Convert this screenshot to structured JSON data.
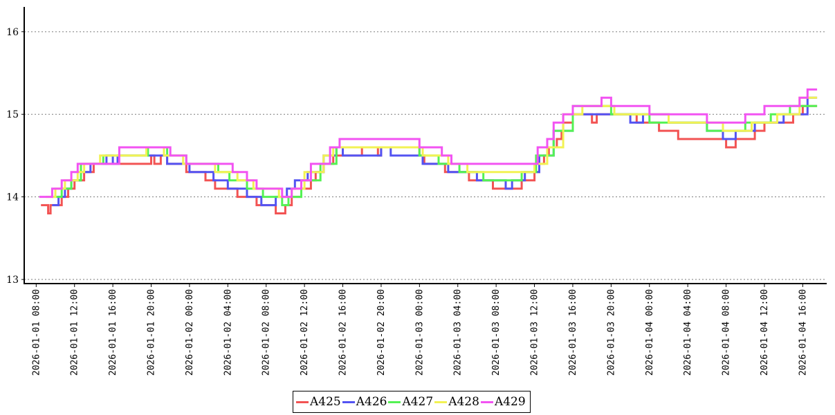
{
  "chart_data": {
    "type": "line",
    "title": "",
    "xlabel": "",
    "ylabel": "",
    "ylim": [
      12.95,
      16.3
    ],
    "xlim": [
      "2026-01-01 06:45",
      "2026-01-04 18:30"
    ],
    "y_ticks": [
      "13",
      "14",
      "15",
      "16"
    ],
    "x_ticks": [
      "2026-01-01 08:00",
      "2026-01-01 12:00",
      "2026-01-01 16:00",
      "2026-01-01 20:00",
      "2026-01-02 00:00",
      "2026-01-02 04:00",
      "2026-01-02 08:00",
      "2026-01-02 12:00",
      "2026-01-02 16:00",
      "2026-01-02 20:00",
      "2026-01-03 00:00",
      "2026-01-03 04:00",
      "2026-01-03 08:00",
      "2026-01-03 12:00",
      "2026-01-03 16:00",
      "2026-01-03 20:00",
      "2026-01-04 00:00",
      "2026-01-04 04:00",
      "2026-01-04 08:00",
      "2026-01-04 12:00",
      "2026-01-04 16:00"
    ],
    "grid": "horizontal dotted",
    "step": true,
    "legend_position": "bottom-center",
    "series": [
      {
        "name": "A425",
        "color": "#f25353",
        "points": [
          [
            "2026-01-01 08:30",
            13.9
          ],
          [
            "2026-01-01 09:15",
            13.8
          ],
          [
            "2026-01-01 09:30",
            13.9
          ],
          [
            "2026-01-01 10:40",
            14.0
          ],
          [
            "2026-01-01 11:20",
            14.1
          ],
          [
            "2026-01-01 12:00",
            14.2
          ],
          [
            "2026-01-01 13:00",
            14.3
          ],
          [
            "2026-01-01 14:00",
            14.4
          ],
          [
            "2026-01-01 20:00",
            14.5
          ],
          [
            "2026-01-01 20:20",
            14.4
          ],
          [
            "2026-01-01 21:00",
            14.5
          ],
          [
            "2026-01-01 21:40",
            14.4
          ],
          [
            "2026-01-01 23:40",
            14.3
          ],
          [
            "2026-01-02 01:40",
            14.2
          ],
          [
            "2026-01-02 02:40",
            14.1
          ],
          [
            "2026-01-02 03:40",
            14.1
          ],
          [
            "2026-01-02 05:00",
            14.0
          ],
          [
            "2026-01-02 07:00",
            13.9
          ],
          [
            "2026-01-02 09:00",
            13.8
          ],
          [
            "2026-01-02 10:00",
            13.9
          ],
          [
            "2026-01-02 10:40",
            14.0
          ],
          [
            "2026-01-02 11:40",
            14.1
          ],
          [
            "2026-01-02 12:40",
            14.2
          ],
          [
            "2026-01-02 13:10",
            14.3
          ],
          [
            "2026-01-02 14:00",
            14.4
          ],
          [
            "2026-01-02 15:00",
            14.5
          ],
          [
            "2026-01-02 16:30",
            14.5
          ],
          [
            "2026-01-02 18:00",
            14.6
          ],
          [
            "2026-01-02 19:40",
            14.5
          ],
          [
            "2026-01-02 20:00",
            14.6
          ],
          [
            "2026-01-03 00:00",
            14.5
          ],
          [
            "2026-01-03 00:30",
            14.4
          ],
          [
            "2026-01-03 02:40",
            14.3
          ],
          [
            "2026-01-03 04:10",
            14.3
          ],
          [
            "2026-01-03 05:10",
            14.2
          ],
          [
            "2026-01-03 07:40",
            14.1
          ],
          [
            "2026-01-03 10:40",
            14.2
          ],
          [
            "2026-01-03 12:00",
            14.3
          ],
          [
            "2026-01-03 12:30",
            14.4
          ],
          [
            "2026-01-03 13:00",
            14.5
          ],
          [
            "2026-01-03 13:30",
            14.6
          ],
          [
            "2026-01-03 14:20",
            14.7
          ],
          [
            "2026-01-03 14:50",
            14.8
          ],
          [
            "2026-01-03 15:00",
            14.9
          ],
          [
            "2026-01-03 16:00",
            15.0
          ],
          [
            "2026-01-03 18:00",
            14.9
          ],
          [
            "2026-01-03 18:30",
            15.0
          ],
          [
            "2026-01-03 22:40",
            14.9
          ],
          [
            "2026-01-04 01:00",
            14.8
          ],
          [
            "2026-01-04 03:00",
            14.7
          ],
          [
            "2026-01-04 08:00",
            14.6
          ],
          [
            "2026-01-04 09:00",
            14.7
          ],
          [
            "2026-01-04 11:00",
            14.8
          ],
          [
            "2026-01-04 12:00",
            14.9
          ],
          [
            "2026-01-04 15:00",
            15.0
          ],
          [
            "2026-01-04 16:00",
            15.1
          ],
          [
            "2026-01-04 17:30",
            15.1
          ]
        ]
      },
      {
        "name": "A426",
        "color": "#5353f2",
        "points": [
          [
            "2026-01-01 09:40",
            13.9
          ],
          [
            "2026-01-01 10:20",
            14.0
          ],
          [
            "2026-01-01 11:00",
            14.1
          ],
          [
            "2026-01-01 11:40",
            14.2
          ],
          [
            "2026-01-01 12:40",
            14.3
          ],
          [
            "2026-01-01 13:40",
            14.4
          ],
          [
            "2026-01-01 15:20",
            14.5
          ],
          [
            "2026-01-01 16:00",
            14.4
          ],
          [
            "2026-01-01 16:30",
            14.5
          ],
          [
            "2026-01-01 21:40",
            14.4
          ],
          [
            "2026-01-01 22:00",
            14.4
          ],
          [
            "2026-01-02 00:00",
            14.3
          ],
          [
            "2026-01-02 02:30",
            14.2
          ],
          [
            "2026-01-02 04:00",
            14.1
          ],
          [
            "2026-01-02 06:00",
            14.0
          ],
          [
            "2026-01-02 07:30",
            13.9
          ],
          [
            "2026-01-02 09:00",
            14.0
          ],
          [
            "2026-01-02 10:10",
            14.1
          ],
          [
            "2026-01-02 11:00",
            14.2
          ],
          [
            "2026-01-02 12:20",
            14.3
          ],
          [
            "2026-01-02 14:00",
            14.5
          ],
          [
            "2026-01-02 15:20",
            14.6
          ],
          [
            "2026-01-02 16:00",
            14.5
          ],
          [
            "2026-01-02 20:00",
            14.6
          ],
          [
            "2026-01-02 21:00",
            14.5
          ],
          [
            "2026-01-03 00:00",
            14.5
          ],
          [
            "2026-01-03 00:20",
            14.4
          ],
          [
            "2026-01-03 03:00",
            14.3
          ],
          [
            "2026-01-03 06:00",
            14.2
          ],
          [
            "2026-01-03 09:00",
            14.1
          ],
          [
            "2026-01-03 09:40",
            14.2
          ],
          [
            "2026-01-03 11:00",
            14.3
          ],
          [
            "2026-01-03 12:30",
            14.5
          ],
          [
            "2026-01-03 14:00",
            14.8
          ],
          [
            "2026-01-03 16:00",
            15.0
          ],
          [
            "2026-01-03 22:00",
            14.9
          ],
          [
            "2026-01-03 23:20",
            15.0
          ],
          [
            "2026-01-04 02:00",
            14.9
          ],
          [
            "2026-01-04 06:00",
            14.8
          ],
          [
            "2026-01-04 07:40",
            14.7
          ],
          [
            "2026-01-04 09:00",
            14.8
          ],
          [
            "2026-01-04 11:00",
            14.9
          ],
          [
            "2026-01-04 14:00",
            15.0
          ],
          [
            "2026-01-04 16:30",
            15.2
          ],
          [
            "2026-01-04 17:30",
            15.2
          ]
        ]
      },
      {
        "name": "A427",
        "color": "#53f253",
        "points": [
          [
            "2026-01-01 09:40",
            14.0
          ],
          [
            "2026-01-01 10:40",
            14.1
          ],
          [
            "2026-01-01 11:40",
            14.2
          ],
          [
            "2026-01-01 12:40",
            14.4
          ],
          [
            "2026-01-01 15:00",
            14.5
          ],
          [
            "2026-01-01 19:40",
            14.6
          ],
          [
            "2026-01-01 21:40",
            14.5
          ],
          [
            "2026-01-01 23:40",
            14.4
          ],
          [
            "2026-01-02 03:00",
            14.3
          ],
          [
            "2026-01-02 04:10",
            14.2
          ],
          [
            "2026-01-02 06:00",
            14.1
          ],
          [
            "2026-01-02 07:40",
            14.0
          ],
          [
            "2026-01-02 09:40",
            13.9
          ],
          [
            "2026-01-02 10:20",
            14.0
          ],
          [
            "2026-01-02 11:40",
            14.2
          ],
          [
            "2026-01-02 13:40",
            14.4
          ],
          [
            "2026-01-02 15:20",
            14.6
          ],
          [
            "2026-01-03 00:00",
            14.5
          ],
          [
            "2026-01-03 02:00",
            14.4
          ],
          [
            "2026-01-03 04:10",
            14.3
          ],
          [
            "2026-01-03 06:40",
            14.2
          ],
          [
            "2026-01-03 10:40",
            14.3
          ],
          [
            "2026-01-03 12:10",
            14.5
          ],
          [
            "2026-01-03 14:00",
            14.8
          ],
          [
            "2026-01-03 16:00",
            15.1
          ],
          [
            "2026-01-03 20:00",
            15.0
          ],
          [
            "2026-01-04 00:00",
            14.9
          ],
          [
            "2026-01-04 06:00",
            14.8
          ],
          [
            "2026-01-04 10:00",
            14.9
          ],
          [
            "2026-01-04 12:40",
            15.0
          ],
          [
            "2026-01-04 14:40",
            15.1
          ],
          [
            "2026-01-04 17:30",
            15.1
          ]
        ]
      },
      {
        "name": "A428",
        "color": "#f2f253",
        "points": [
          [
            "2026-01-01 09:00",
            14.0
          ],
          [
            "2026-01-01 10:00",
            14.1
          ],
          [
            "2026-01-01 11:00",
            14.2
          ],
          [
            "2026-01-01 12:20",
            14.3
          ],
          [
            "2026-01-01 13:00",
            14.4
          ],
          [
            "2026-01-01 14:40",
            14.5
          ],
          [
            "2026-01-01 19:30",
            14.6
          ],
          [
            "2026-01-01 21:20",
            14.5
          ],
          [
            "2026-01-01 23:20",
            14.4
          ],
          [
            "2026-01-02 02:40",
            14.3
          ],
          [
            "2026-01-02 05:00",
            14.2
          ],
          [
            "2026-01-02 06:40",
            14.1
          ],
          [
            "2026-01-02 09:20",
            14.0
          ],
          [
            "2026-01-02 10:40",
            14.1
          ],
          [
            "2026-01-02 12:00",
            14.3
          ],
          [
            "2026-01-02 14:00",
            14.5
          ],
          [
            "2026-01-02 15:00",
            14.6
          ],
          [
            "2026-01-03 00:20",
            14.5
          ],
          [
            "2026-01-03 03:00",
            14.4
          ],
          [
            "2026-01-03 05:00",
            14.3
          ],
          [
            "2026-01-03 10:40",
            14.3
          ],
          [
            "2026-01-03 12:00",
            14.4
          ],
          [
            "2026-01-03 13:20",
            14.6
          ],
          [
            "2026-01-03 15:00",
            15.0
          ],
          [
            "2026-01-03 17:00",
            15.1
          ],
          [
            "2026-01-03 20:20",
            15.0
          ],
          [
            "2026-01-04 02:00",
            14.9
          ],
          [
            "2026-01-04 07:40",
            14.8
          ],
          [
            "2026-01-04 10:40",
            14.9
          ],
          [
            "2026-01-04 13:20",
            15.0
          ],
          [
            "2026-01-04 15:40",
            15.2
          ],
          [
            "2026-01-04 17:30",
            15.2
          ]
        ]
      },
      {
        "name": "A429",
        "color": "#f253f2",
        "points": [
          [
            "2026-01-01 08:20",
            14.0
          ],
          [
            "2026-01-01 09:40",
            14.1
          ],
          [
            "2026-01-01 10:40",
            14.2
          ],
          [
            "2026-01-01 11:40",
            14.3
          ],
          [
            "2026-01-01 12:20",
            14.4
          ],
          [
            "2026-01-01 16:40",
            14.6
          ],
          [
            "2026-01-01 22:00",
            14.5
          ],
          [
            "2026-01-01 23:40",
            14.4
          ],
          [
            "2026-01-02 04:30",
            14.3
          ],
          [
            "2026-01-02 06:00",
            14.2
          ],
          [
            "2026-01-02 07:00",
            14.1
          ],
          [
            "2026-01-02 09:40",
            14.0
          ],
          [
            "2026-01-02 10:40",
            14.1
          ],
          [
            "2026-01-02 11:40",
            14.2
          ],
          [
            "2026-01-02 12:40",
            14.4
          ],
          [
            "2026-01-02 14:40",
            14.6
          ],
          [
            "2026-01-02 15:40",
            14.7
          ],
          [
            "2026-01-03 00:00",
            14.6
          ],
          [
            "2026-01-03 02:20",
            14.5
          ],
          [
            "2026-01-03 03:20",
            14.4
          ],
          [
            "2026-01-03 11:40",
            14.4
          ],
          [
            "2026-01-03 12:20",
            14.6
          ],
          [
            "2026-01-03 13:20",
            14.7
          ],
          [
            "2026-01-03 14:00",
            14.9
          ],
          [
            "2026-01-03 15:00",
            15.0
          ],
          [
            "2026-01-03 16:00",
            15.1
          ],
          [
            "2026-01-03 19:00",
            15.2
          ],
          [
            "2026-01-03 20:00",
            15.1
          ],
          [
            "2026-01-03 24:00",
            15.0
          ],
          [
            "2026-01-04 06:00",
            14.9
          ],
          [
            "2026-01-04 10:00",
            15.0
          ],
          [
            "2026-01-04 12:00",
            15.1
          ],
          [
            "2026-01-04 14:00",
            15.1
          ],
          [
            "2026-01-04 15:40",
            15.2
          ],
          [
            "2026-01-04 16:30",
            15.3
          ],
          [
            "2026-01-04 17:30",
            15.3
          ]
        ]
      }
    ]
  }
}
